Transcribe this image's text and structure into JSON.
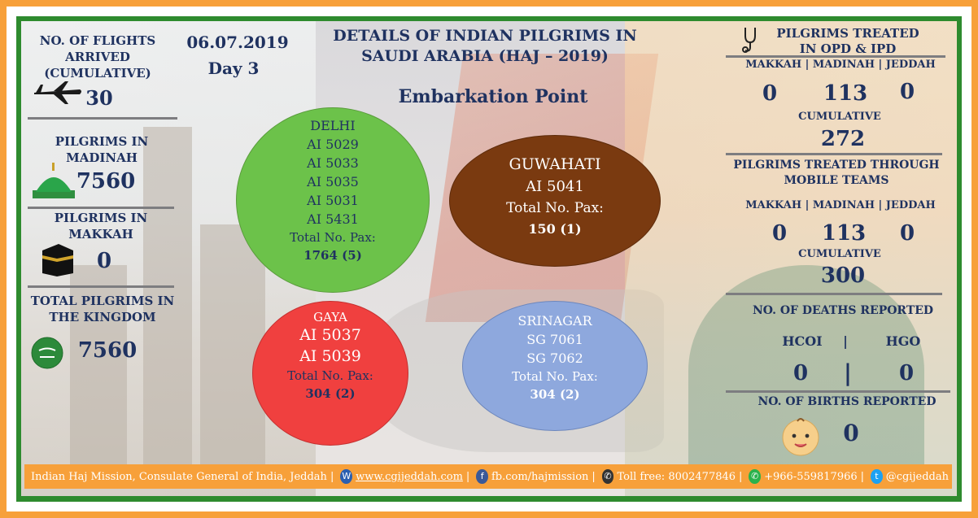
{
  "header": {
    "date": "06.07.2019",
    "day": "Day 3",
    "title_line1": "DETAILS OF INDIAN PILGRIMS IN",
    "title_line2": "SAUDI ARABIA (HAJ – 2019)",
    "subtitle": "Embarkation Point"
  },
  "left": {
    "flights_label_1": "NO. OF FLIGHTS",
    "flights_label_2": "ARRIVED",
    "flights_label_3": "(CUMULATIVE)",
    "flights_value": "30",
    "madinah_label_1": "PILGRIMS IN",
    "madinah_label_2": "MADINAH",
    "madinah_value": "7560",
    "makkah_label_1": "PILGRIMS IN",
    "makkah_label_2": "MAKKAH",
    "makkah_value": "0",
    "kingdom_label_1": "TOTAL PILGRIMS IN",
    "kingdom_label_2": "THE KINGDOM",
    "kingdom_value": "7560",
    "icons": {
      "plane": "airplane-icon",
      "madinah": "green-dome-icon",
      "makkah": "kaaba-icon",
      "kingdom": "saudi-flag-icon"
    }
  },
  "embarkation": {
    "delhi": {
      "city": "DELHI",
      "flights": [
        "AI 5029",
        "AI 5033",
        "AI 5035",
        "AI 5031",
        "AI 5431"
      ],
      "total_label": "Total No. Pax:",
      "total": "1764 (5)",
      "color": "#6cc24a"
    },
    "guwahati": {
      "city": "GUWAHATI",
      "flights": [
        "AI 5041"
      ],
      "total_label": "Total No. Pax:",
      "total": "150 (1)",
      "color": "#7a3a10"
    },
    "gaya": {
      "city": "GAYA",
      "flights": [
        "AI 5037",
        "AI 5039"
      ],
      "total_label": "Total No. Pax:",
      "total": "304 (2)",
      "color": "#f0403f"
    },
    "srinagar": {
      "city": "SRINAGAR",
      "flights": [
        "SG 7061",
        "SG 7062"
      ],
      "total_label": "Total No. Pax:",
      "total": "304 (2)",
      "color": "#8ea8dd"
    }
  },
  "right": {
    "opd_title_1": "PILGRIMS TREATED",
    "opd_title_2": "IN OPD & IPD",
    "opd_cols": "MAKKAH | MADINAH | JEDDAH",
    "opd_makkah": "0",
    "opd_madinah": "113",
    "opd_jeddah": "0",
    "opd_cum_label": "CUMULATIVE",
    "opd_cum_value": "272",
    "mobile_title_1": "PILGRIMS TREATED THROUGH",
    "mobile_title_2": "MOBILE TEAMS",
    "mobile_cols": "MAKKAH | MADINAH | JEDDAH",
    "mobile_makkah": "0",
    "mobile_madinah": "113",
    "mobile_jeddah": "0",
    "mobile_cum_label": "CUMULATIVE",
    "mobile_cum_value": "300",
    "deaths_title": "NO. OF DEATHS REPORTED",
    "deaths_hcoi_label": "HCOI",
    "deaths_sep": "|",
    "deaths_hgo_label": "HGO",
    "deaths_hcoi": "0",
    "deaths_hgo": "0",
    "births_title": "NO. OF BIRTHS REPORTED",
    "births_value": "0",
    "icons": {
      "stethoscope": "stethoscope-icon",
      "baby": "baby-face-icon"
    }
  },
  "footer": {
    "org": "Indian Haj Mission, Consulate General of India, Jeddah |",
    "web": "www.cgijeddah.com",
    "sep1": "|",
    "fb": "fb.com/hajmission",
    "sep2": "|",
    "tollfree": "Toll free: 8002477846",
    "sep3": "|",
    "whatsapp": "+966-559817966",
    "sep4": "|",
    "twitter": "@cgijeddah"
  },
  "colors": {
    "text_navy": "#1f3260",
    "frame_orange": "#f7a03a",
    "frame_green": "#2e8b2e"
  }
}
